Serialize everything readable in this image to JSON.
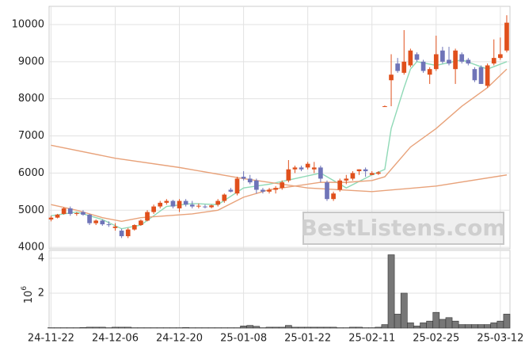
{
  "chart_data": {
    "type": "candlestick",
    "x": [
      0,
      1,
      2,
      3,
      4,
      5,
      6,
      7,
      8,
      9,
      10,
      11,
      12,
      13,
      14,
      15,
      16,
      17,
      18,
      19,
      20,
      21,
      22,
      23,
      24,
      25,
      26,
      27,
      28,
      29,
      30,
      31,
      32,
      33,
      34,
      35,
      36,
      37,
      38,
      39,
      40,
      41,
      42,
      43,
      44,
      45,
      46,
      47,
      48,
      49,
      50,
      51,
      52,
      53,
      54,
      55,
      56,
      57,
      58,
      59,
      60,
      61,
      62,
      63,
      64,
      65,
      66,
      67,
      68,
      69,
      70,
      71
    ],
    "open": [
      4750,
      4800,
      4900,
      5050,
      4900,
      4950,
      4880,
      4650,
      4720,
      4620,
      4520,
      4450,
      4300,
      4480,
      4600,
      4720,
      4950,
      5100,
      5200,
      5250,
      5050,
      5250,
      5150,
      5100,
      5100,
      5080,
      5150,
      5250,
      5550,
      5450,
      5900,
      5850,
      5800,
      5550,
      5500,
      5550,
      5600,
      5800,
      6100,
      6150,
      6150,
      6100,
      6150,
      5750,
      5300,
      5550,
      5800,
      5850,
      6050,
      6100,
      5950,
      5980,
      7800,
      8500,
      8950,
      8700,
      8900,
      9200,
      9000,
      8650,
      8800,
      9300,
      9050,
      8800,
      9200,
      9050,
      8800,
      8850,
      8350,
      8950,
      9100,
      9300
    ],
    "high": [
      4850,
      4900,
      5080,
      5100,
      4950,
      5000,
      4900,
      4750,
      4750,
      4700,
      4650,
      4500,
      4520,
      4620,
      4750,
      5000,
      5150,
      5250,
      5300,
      5280,
      5300,
      5300,
      5250,
      5180,
      5150,
      5150,
      5300,
      5450,
      5600,
      5900,
      6050,
      5950,
      5850,
      5600,
      5600,
      5650,
      5800,
      6350,
      6200,
      6200,
      6300,
      6300,
      6200,
      5800,
      5500,
      5850,
      5950,
      6050,
      6100,
      6150,
      6050,
      6050,
      7820,
      9200,
      9100,
      9850,
      9350,
      9250,
      9050,
      8850,
      9700,
      9400,
      9400,
      9350,
      9250,
      9100,
      8850,
      8900,
      8950,
      9600,
      9650,
      10250
    ],
    "low": [
      4700,
      4780,
      4880,
      4850,
      4850,
      4850,
      4600,
      4600,
      4580,
      4550,
      4450,
      4250,
      4250,
      4450,
      4580,
      4700,
      4900,
      5050,
      5150,
      5050,
      4950,
      5100,
      5050,
      5050,
      5050,
      5050,
      5100,
      5200,
      5480,
      5400,
      5800,
      5700,
      5450,
      5450,
      5450,
      5450,
      5550,
      5750,
      6000,
      6050,
      6100,
      6000,
      5750,
      5250,
      5250,
      5500,
      5700,
      5800,
      5950,
      5900,
      5950,
      5950,
      7780,
      7800,
      8700,
      8650,
      8850,
      9000,
      8700,
      8400,
      8750,
      8950,
      8900,
      8400,
      8950,
      8900,
      8450,
      8400,
      8300,
      8900,
      9050,
      9250
    ],
    "close": [
      4800,
      4880,
      5050,
      4900,
      4920,
      4880,
      4650,
      4720,
      4620,
      4600,
      4560,
      4300,
      4480,
      4600,
      4720,
      4950,
      5100,
      5200,
      5250,
      5100,
      5250,
      5150,
      5100,
      5120,
      5080,
      5130,
      5250,
      5420,
      5500,
      5850,
      5850,
      5750,
      5550,
      5500,
      5550,
      5600,
      5750,
      6100,
      6150,
      6100,
      6250,
      6150,
      5850,
      5300,
      5450,
      5800,
      5850,
      6000,
      6100,
      6050,
      6000,
      6020,
      7800,
      8650,
      8750,
      9000,
      9300,
      9050,
      8750,
      8800,
      9200,
      9000,
      8950,
      9300,
      9000,
      8950,
      8500,
      8400,
      8900,
      9100,
      9200,
      10050
    ],
    "volume": [
      0.02,
      0.02,
      0.02,
      0.02,
      0.02,
      0.03,
      0.05,
      0.05,
      0.05,
      0.02,
      0.05,
      0.05,
      0.05,
      0.02,
      0.02,
      0.02,
      0.02,
      0.02,
      0.02,
      0.02,
      0.02,
      0.03,
      0.02,
      0.02,
      0.02,
      0.02,
      0.02,
      0.02,
      0.02,
      0.02,
      0.12,
      0.15,
      0.1,
      0.02,
      0.05,
      0.05,
      0.05,
      0.15,
      0.05,
      0.05,
      0.05,
      0.05,
      0.05,
      0.05,
      0.05,
      0.02,
      0.02,
      0.05,
      0.05,
      0.02,
      0.02,
      0.05,
      0.2,
      4.2,
      0.8,
      2.0,
      0.3,
      0.12,
      0.3,
      0.4,
      0.9,
      0.5,
      0.6,
      0.4,
      0.2,
      0.2,
      0.2,
      0.2,
      0.2,
      0.3,
      0.4,
      0.8
    ],
    "up_color": "#e0501c",
    "down_color": "#6f74b8",
    "volume_color": "#777777",
    "ma_lines": [
      {
        "color": "#8fd9b6",
        "x": [
          0,
          4,
          8,
          11,
          14,
          18,
          22,
          26,
          30,
          34,
          38,
          42,
          46,
          50,
          52,
          53,
          55,
          56,
          57,
          60,
          64,
          68,
          71
        ],
        "values": [
          4850,
          4950,
          4750,
          4500,
          4600,
          5100,
          5180,
          5150,
          5600,
          5700,
          5850,
          6000,
          5600,
          5950,
          6100,
          7200,
          8300,
          8800,
          9000,
          8900,
          9050,
          8800,
          9000
        ]
      },
      {
        "color": "#e8a27a",
        "x": [
          0,
          4,
          8,
          11,
          14,
          18,
          22,
          26,
          30,
          34,
          38,
          42,
          46,
          50,
          52,
          56,
          60,
          64,
          68,
          71
        ],
        "values": [
          5150,
          5000,
          4800,
          4700,
          4800,
          4850,
          4900,
          5000,
          5350,
          5550,
          5650,
          5750,
          5750,
          5800,
          5900,
          6700,
          7200,
          7800,
          8300,
          8800
        ]
      },
      {
        "color": "#e8a27a",
        "x": [
          0,
          10,
          20,
          30,
          40,
          50,
          60,
          71
        ],
        "values": [
          6750,
          6400,
          6150,
          5850,
          5600,
          5500,
          5650,
          5950
        ]
      }
    ],
    "xlim": [
      -0.3,
      71.5
    ],
    "xticks": [
      {
        "value": 0,
        "label": "24-11-22"
      },
      {
        "value": 10,
        "label": "24-12-06"
      },
      {
        "value": 20,
        "label": "24-12-20"
      },
      {
        "value": 30,
        "label": "25-01-08"
      },
      {
        "value": 40,
        "label": "25-01-22"
      },
      {
        "value": 50,
        "label": "25-02-11"
      },
      {
        "value": 60,
        "label": "25-02-25"
      },
      {
        "value": 70,
        "label": "25-03-12"
      }
    ],
    "ylim": [
      3960,
      10490
    ],
    "yticks": [
      4000,
      5000,
      6000,
      7000,
      8000,
      9000,
      10000
    ],
    "volume_ylim": [
      0,
      4.45
    ],
    "volume_yticks": [
      2,
      4
    ],
    "volume_scale": {
      "base": "10",
      "exponent": "6"
    },
    "grid": true,
    "watermark": "BestListens.com"
  }
}
